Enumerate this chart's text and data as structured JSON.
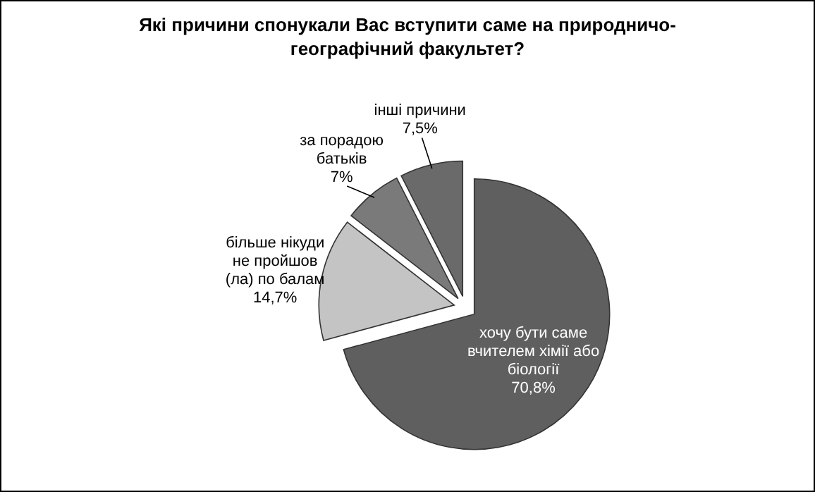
{
  "chart_data": {
    "type": "pie",
    "title": "Які причини спонукали Вас вступити саме на природничо-географічний факультет?",
    "categories": [
      "хочу бути саме вчителем хімії або біології",
      "більше нікуди не пройшов (ла) по балам",
      "за порадою батьків",
      "інші причини"
    ],
    "values": [
      70.8,
      14.7,
      7,
      7.5
    ],
    "value_labels": [
      "70,8%",
      "14,7%",
      "7%",
      "7,5%"
    ],
    "colors": [
      "#5f5f5f",
      "#c4c4c4",
      "#7a7a7a",
      "#6a6a6a"
    ]
  }
}
